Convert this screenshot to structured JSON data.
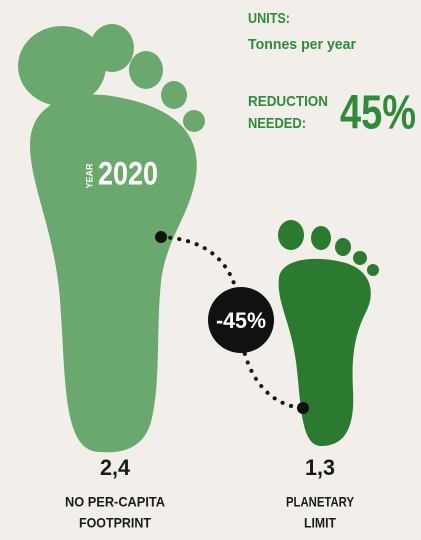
{
  "units": {
    "label": "UNITS:",
    "value": "Tonnes per year"
  },
  "reduction": {
    "label": [
      "REDUCTION",
      "NEEDED:"
    ],
    "value": "45%"
  },
  "year": {
    "label": "YEAR",
    "value": "2020"
  },
  "change": "-45%",
  "footprints": [
    {
      "value": "2,4",
      "label": [
        "NO PER-CAPITA",
        "FOOTPRINT"
      ]
    },
    {
      "value": "1,3",
      "label": [
        "PLANETARY",
        "LIMIT"
      ]
    }
  ]
}
